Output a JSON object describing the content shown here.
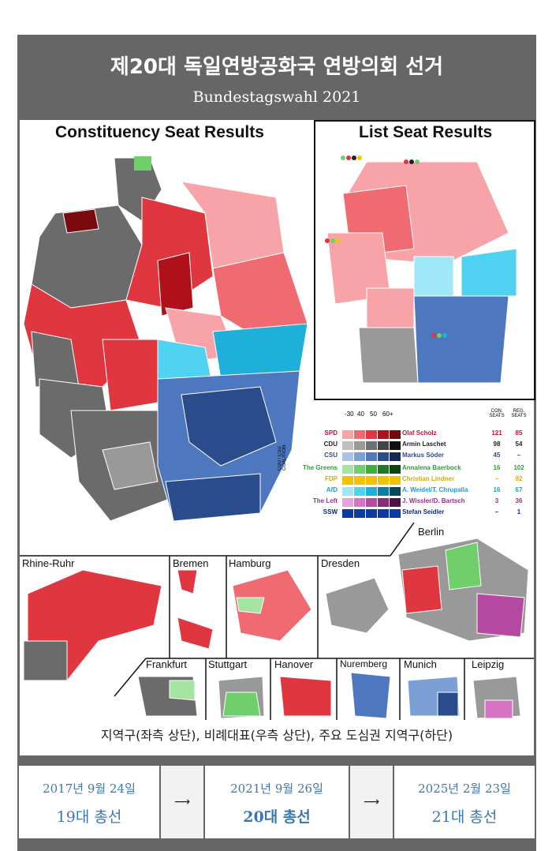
{
  "header": {
    "title": "제20대 독일연방공화국 연방의회 선거",
    "subtitle": "Bundestagswahl 2021"
  },
  "maps": {
    "constituency_heading": "Constituency Seat Results",
    "list_heading": "List Seat Results"
  },
  "legend": {
    "scale_labels": [
      "-30",
      "40",
      "50",
      "60+"
    ],
    "col_con": "CON. SEATS",
    "col_reg": "REG. SEATS",
    "coalition_label": "CDU / CSU COALITION",
    "rows": [
      {
        "party": "SPD",
        "leader": "Olaf Scholz",
        "con": "121",
        "reg": "85",
        "color": "#c8102e",
        "ramp": [
          "#f7a3a8",
          "#f06a72",
          "#e0363f",
          "#b0101a",
          "#6e0a10"
        ]
      },
      {
        "party": "CDU",
        "leader": "Armin Laschet",
        "con": "98",
        "reg": "54",
        "color": "#222222",
        "ramp": [
          "#bfbfbf",
          "#999999",
          "#707070",
          "#444444",
          "#111111"
        ]
      },
      {
        "party": "CSU",
        "leader": "Markus Söder",
        "con": "45",
        "reg": "–",
        "color": "#2b4c8c",
        "ramp": [
          "#a9c2e6",
          "#7ba0d6",
          "#4d78bf",
          "#2b4c8c",
          "#152a55"
        ]
      },
      {
        "party": "The Greens",
        "leader": "Annalena Baerbock",
        "con": "16",
        "reg": "102",
        "color": "#2e9e3a",
        "ramp": [
          "#a5e3a0",
          "#6fcf6a",
          "#3fae3c",
          "#1f7a24",
          "#0c4412"
        ]
      },
      {
        "party": "FDP",
        "leader": "Christian Lindner",
        "con": "–",
        "reg": "92",
        "color": "#d4a900",
        "ramp": [
          "#f2c300",
          "#f2c300",
          "#f2c300",
          "#f2c300",
          "#f2c300"
        ]
      },
      {
        "party": "AfD",
        "leader": "A. Weidel/T. Chrupalla",
        "con": "16",
        "reg": "67",
        "color": "#1a9fc7",
        "ramp": [
          "#9ee8f7",
          "#4fd3f0",
          "#1eb0d8",
          "#0a7fa3",
          "#05475c"
        ]
      },
      {
        "party": "The Left",
        "leader": "J. Wissler/D. Bartsch",
        "con": "3",
        "reg": "36",
        "color": "#9b2c8e",
        "ramp": [
          "#e9a3dc",
          "#d574c3",
          "#b64aa3",
          "#8a2a7b",
          "#4f1247"
        ]
      },
      {
        "party": "SSW",
        "leader": "Stefan Seidler",
        "con": "–",
        "reg": "1",
        "color": "#0b2a7a",
        "ramp": [
          "#0b3ca3",
          "#0b3ca3",
          "#0b3ca3",
          "#0b3ca3",
          "#0b3ca3"
        ]
      }
    ]
  },
  "cities": [
    "Rhine-Ruhr",
    "Bremen",
    "Hamburg",
    "Dresden",
    "Berlin",
    "Frankfurt",
    "Stuttgart",
    "Hanover",
    "Nuremberg",
    "Munich",
    "Leipzig"
  ],
  "caption": "지역구(좌측 상단), 비례대표(우측 상단), 주요 도심권 지역구(하단)",
  "timeline": {
    "prev": {
      "date": "2017년 9월 24일",
      "name": "19대 총선"
    },
    "current": {
      "date": "2021년 9월 26일",
      "name": "20대 총선"
    },
    "next": {
      "date": "2025년 2월 23일",
      "name": "21대 총선"
    },
    "arrow": "⟶"
  }
}
